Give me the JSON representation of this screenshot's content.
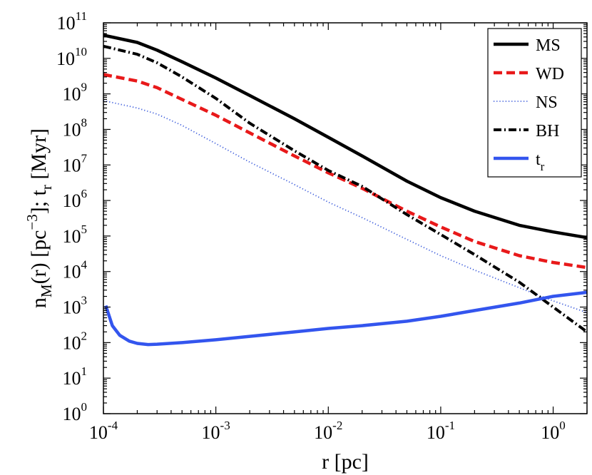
{
  "chart_data": {
    "type": "line",
    "xscale": "log",
    "yscale": "log",
    "xlim": [
      0.0001,
      2
    ],
    "ylim": [
      1,
      100000000000
    ],
    "xlabel": "r [pc]",
    "ylabel": "n_M(r) [pc^-3]; t_r [Myr]",
    "x_ticks": [
      {
        "base": "10",
        "exp": "-4",
        "value": 0.0001
      },
      {
        "base": "10",
        "exp": "-3",
        "value": 0.001
      },
      {
        "base": "10",
        "exp": "-2",
        "value": 0.01
      },
      {
        "base": "10",
        "exp": "-1",
        "value": 0.1
      },
      {
        "base": "10",
        "exp": "0",
        "value": 1
      }
    ],
    "y_ticks": [
      {
        "base": "10",
        "exp": "0",
        "value": 1
      },
      {
        "base": "10",
        "exp": "1",
        "value": 10
      },
      {
        "base": "10",
        "exp": "2",
        "value": 100
      },
      {
        "base": "10",
        "exp": "3",
        "value": 1000
      },
      {
        "base": "10",
        "exp": "4",
        "value": 10000
      },
      {
        "base": "10",
        "exp": "5",
        "value": 100000
      },
      {
        "base": "10",
        "exp": "6",
        "value": 1000000
      },
      {
        "base": "10",
        "exp": "7",
        "value": 10000000
      },
      {
        "base": "10",
        "exp": "8",
        "value": 100000000
      },
      {
        "base": "10",
        "exp": "9",
        "value": 1000000000
      },
      {
        "base": "10",
        "exp": "10",
        "value": 10000000000
      },
      {
        "base": "10",
        "exp": "11",
        "value": 100000000000
      }
    ],
    "legend": {
      "position": "top-right"
    },
    "series": [
      {
        "name": "MS",
        "label_main": "MS",
        "label_sub": "",
        "color": "#000000",
        "style": "solid",
        "x": [
          0.0001,
          0.0002,
          0.0003,
          0.0005,
          0.001,
          0.002,
          0.005,
          0.01,
          0.02,
          0.05,
          0.1,
          0.2,
          0.5,
          1,
          2
        ],
        "y": [
          45000000000,
          28000000000,
          17000000000,
          8000000000,
          2800000000,
          900000000,
          200000000,
          60000000,
          18000000,
          3500000,
          1200000,
          500000,
          200000,
          130000,
          90000
        ]
      },
      {
        "name": "WD",
        "label_main": "WD",
        "label_sub": "",
        "color": "#e8191a",
        "style": "dashed",
        "x": [
          0.0001,
          0.0002,
          0.0003,
          0.0005,
          0.001,
          0.002,
          0.005,
          0.01,
          0.02,
          0.05,
          0.1,
          0.2,
          0.5,
          1,
          2
        ],
        "y": [
          3500000000,
          2300000000,
          1500000000,
          700000000,
          250000000,
          80000000,
          18000000,
          6000000,
          2200000,
          500000,
          180000,
          70000,
          28000,
          18000,
          13000
        ]
      },
      {
        "name": "NS",
        "label_main": "NS",
        "label_sub": "",
        "color": "#3b5bdb",
        "style": "dotted",
        "x": [
          0.0001,
          0.0002,
          0.0003,
          0.0005,
          0.001,
          0.002,
          0.005,
          0.01,
          0.02,
          0.05,
          0.1,
          0.2,
          0.5,
          1,
          2
        ],
        "y": [
          650000000,
          400000000,
          270000000,
          130000000,
          40000000,
          12000000,
          2800000,
          900000,
          330000,
          80000,
          28000,
          11000,
          3500,
          1500,
          700
        ]
      },
      {
        "name": "BH",
        "label_main": "BH",
        "label_sub": "",
        "color": "#000000",
        "style": "dashdot",
        "x": [
          0.0001,
          0.0002,
          0.0003,
          0.0005,
          0.001,
          0.002,
          0.005,
          0.01,
          0.02,
          0.05,
          0.1,
          0.2,
          0.5,
          1,
          2
        ],
        "y": [
          22000000000,
          13000000000,
          7500000000,
          3000000000,
          750000000,
          150000000,
          25000000,
          7000000,
          2500000,
          400000,
          110000,
          30000,
          5000,
          1000,
          200
        ]
      },
      {
        "name": "t_r",
        "label_main": "t",
        "label_sub": "r",
        "color": "#3355ee",
        "style": "solid",
        "x": [
          0.000105,
          0.00011,
          0.00012,
          0.00014,
          0.00017,
          0.0002,
          0.00025,
          0.0003,
          0.0005,
          0.001,
          0.002,
          0.005,
          0.01,
          0.02,
          0.05,
          0.1,
          0.2,
          0.5,
          1,
          2
        ],
        "y": [
          1100,
          700,
          300,
          160,
          110,
          95,
          88,
          90,
          100,
          120,
          150,
          200,
          250,
          300,
          400,
          550,
          800,
          1300,
          2000,
          2600
        ]
      }
    ]
  }
}
